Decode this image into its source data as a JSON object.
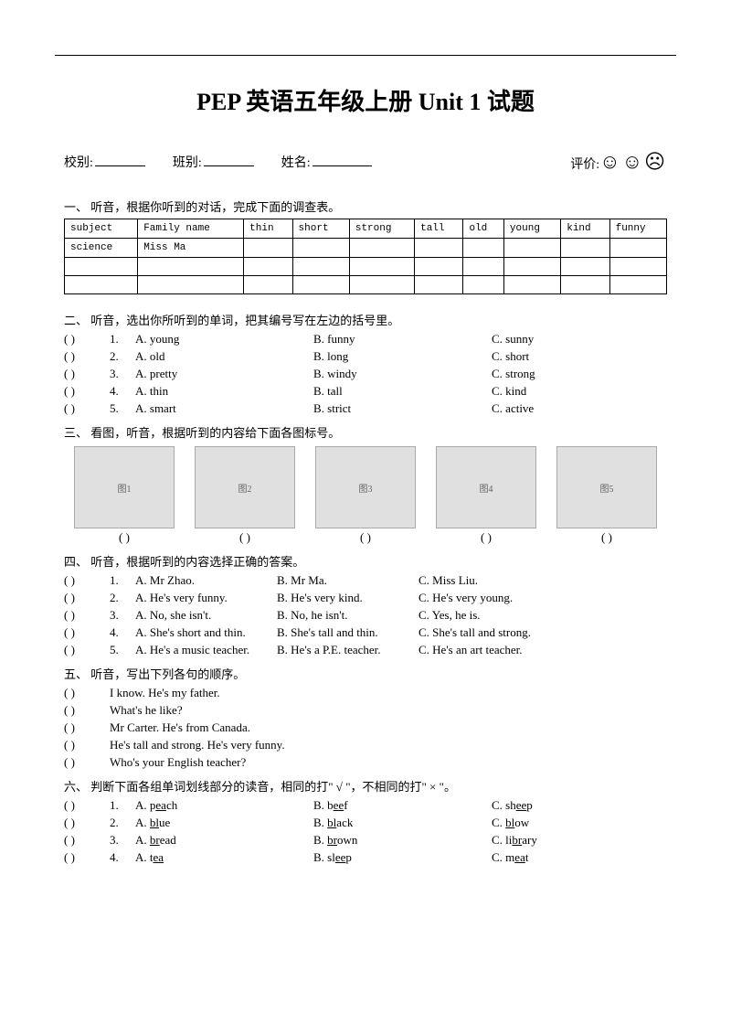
{
  "title": "PEP 英语五年级上册 Unit 1 试题",
  "info": {
    "school_label": "校别:",
    "class_label": "班别:",
    "name_label": "姓名:",
    "rating_label": "评价:",
    "faces": "☺☺☹"
  },
  "sec1": {
    "head": "一、 听音，根据你听到的对话，完成下面的调查表。",
    "headers": [
      "subject",
      "Family name",
      "thin",
      "short",
      "strong",
      "tall",
      "old",
      "young",
      "kind",
      "funny"
    ],
    "row1": [
      "science",
      "Miss Ma",
      "",
      "",
      "",
      "",
      "",
      "",
      "",
      ""
    ]
  },
  "sec2": {
    "head": "二、 听音，选出你所听到的单词，把其编号写在左边的括号里。",
    "rows": [
      {
        "n": "1.",
        "a": "A. young",
        "b": "B. funny",
        "c": "C. sunny"
      },
      {
        "n": "2.",
        "a": "A. old",
        "b": "B. long",
        "c": "C. short"
      },
      {
        "n": "3.",
        "a": "A. pretty",
        "b": "B. windy",
        "c": "C. strong"
      },
      {
        "n": "4.",
        "a": "A. thin",
        "b": "B. tall",
        "c": "C. kind"
      },
      {
        "n": "5.",
        "a": "A. smart",
        "b": "B. strict",
        "c": "C. active"
      }
    ]
  },
  "sec3": {
    "head": "三、 看图，听音，根据听到的内容给下面各图标号。",
    "imgs": [
      "图1",
      "图2",
      "图3",
      "图4",
      "图5"
    ],
    "paren": "(        )"
  },
  "sec4": {
    "head": "四、 听音，根据听到的内容选择正确的答案。",
    "rows": [
      {
        "n": "1.",
        "a": "A. Mr Zhao.",
        "b": "B. Mr Ma.",
        "c": "C. Miss Liu."
      },
      {
        "n": "2.",
        "a": "A. He's very funny.",
        "b": "B. He's very kind.",
        "c": "C. He's very young."
      },
      {
        "n": "3.",
        "a": "A. No, she isn't.",
        "b": "B. No, he isn't.",
        "c": "C. Yes, he is."
      },
      {
        "n": "4.",
        "a": "A. She's short and thin.",
        "b": "B. She's tall and thin.",
        "c": "C. She's tall and strong."
      },
      {
        "n": "5.",
        "a": "A. He's a music teacher.",
        "b": "B. He's a P.E. teacher.",
        "c": "C. He's an art teacher."
      }
    ]
  },
  "sec5": {
    "head": "五、 听音，写出下列各句的顺序。",
    "rows": [
      "I know. He's my father.",
      "What's he like?",
      "Mr Carter. He's from Canada.",
      "He's tall and strong. He's very funny.",
      "Who's your English teacher?"
    ]
  },
  "sec6": {
    "head": "六、 判断下面各组单词划线部分的读音，相同的打\" √ \"，不相同的打\" × \"。",
    "rows": [
      {
        "n": "1.",
        "a": "A. p",
        "au": "ea",
        "ae": "ch",
        "b": "B. b",
        "bu": "ee",
        "be": "f",
        "c": "C. sh",
        "cu": "ee",
        "ce": "p"
      },
      {
        "n": "2.",
        "a": "A. ",
        "au": "bl",
        "ae": "ue",
        "b": "B. ",
        "bu": "bl",
        "be": "ack",
        "c": "C. ",
        "cu": "bl",
        "ce": "ow"
      },
      {
        "n": "3.",
        "a": "A. ",
        "au": "br",
        "ae": "ead",
        "b": "B. ",
        "bu": "br",
        "be": "own",
        "c": "C. li",
        "cu": "br",
        "ce": "ary"
      },
      {
        "n": "4.",
        "a": "A. t",
        "au": "ea",
        "ae": "",
        "b": "B. sl",
        "bu": "ee",
        "be": "p",
        "c": "C. m",
        "cu": "ea",
        "ce": "t"
      }
    ]
  },
  "paren_open": "(",
  "paren_full": "(      )"
}
